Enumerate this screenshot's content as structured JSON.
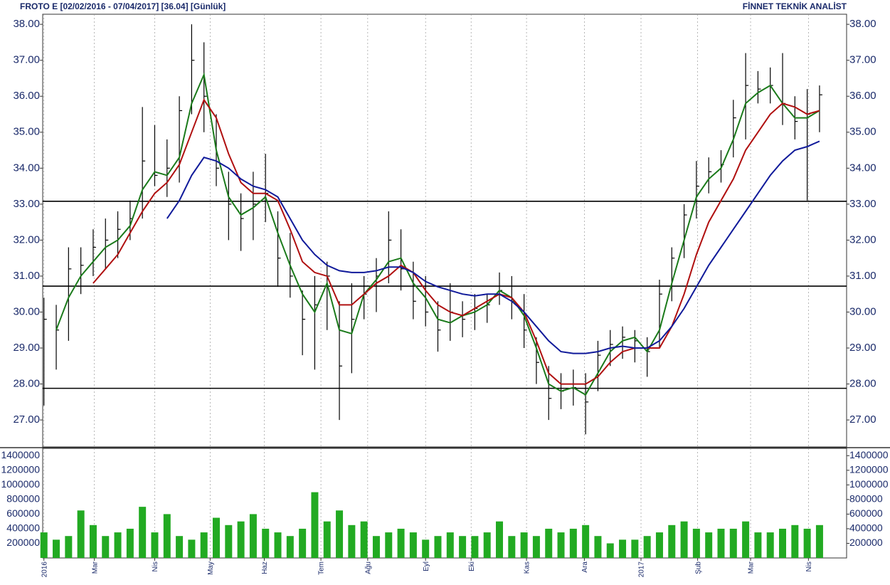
{
  "header": {
    "title": "FROTO E  [02/02/2016 - 07/04/2017]  [36.04]  [Günlük]",
    "brand": "FİNNET TEKNİK ANALİST"
  },
  "chart_data": [
    {
      "type": "ohlc",
      "x": [
        0,
        1,
        2,
        3,
        4,
        5,
        6,
        7,
        8,
        9,
        10,
        11,
        12,
        13,
        14,
        15,
        16,
        17,
        18,
        19,
        20,
        21,
        22,
        23,
        24,
        25,
        26,
        27,
        28,
        29,
        30,
        31,
        32,
        33,
        34,
        35,
        36,
        37,
        38,
        39,
        40,
        41,
        42,
        43,
        44,
        45,
        46,
        47,
        48,
        49,
        50,
        51,
        52,
        53,
        54,
        55,
        56,
        57,
        58,
        59,
        60,
        61,
        62,
        63
      ],
      "high": [
        30.4,
        30.2,
        31.8,
        31.8,
        32.3,
        32.6,
        32.8,
        33.1,
        35.7,
        35.2,
        34.8,
        36.0,
        38.0,
        37.5,
        35.5,
        33.9,
        33.3,
        33.9,
        34.4,
        32.8,
        32.2,
        30.6,
        31.0,
        31.4,
        30.3,
        30.8,
        31.0,
        31.5,
        32.8,
        32.3,
        31.4,
        31.0,
        30.3,
        30.8,
        30.3,
        30.5,
        30.5,
        31.1,
        31.0,
        30.5,
        29.3,
        28.5,
        28.3,
        28.4,
        28.3,
        29.2,
        29.5,
        29.6,
        29.5,
        29.3,
        30.9,
        31.8,
        33.0,
        34.2,
        34.3,
        34.5,
        35.9,
        37.2,
        36.7,
        36.8,
        37.2,
        36.0,
        36.2,
        36.3
      ],
      "low": [
        27.4,
        28.4,
        29.2,
        30.5,
        31.0,
        31.2,
        31.5,
        32.0,
        32.6,
        33.5,
        33.2,
        33.6,
        35.5,
        35.0,
        33.5,
        32.0,
        31.7,
        32.0,
        32.5,
        30.7,
        30.4,
        28.8,
        28.4,
        29.5,
        27.0,
        28.3,
        29.8,
        30.0,
        30.8,
        30.6,
        29.8,
        29.6,
        28.9,
        29.2,
        29.3,
        29.5,
        29.7,
        30.2,
        29.8,
        29.0,
        28.0,
        27.0,
        27.3,
        27.4,
        26.6,
        27.8,
        28.5,
        28.7,
        28.6,
        28.2,
        29.0,
        30.3,
        31.5,
        32.6,
        33.3,
        33.6,
        34.3,
        34.8,
        35.8,
        35.8,
        35.2,
        34.8,
        33.1,
        35.0
      ],
      "close": [
        29.8,
        29.5,
        31.2,
        31.3,
        31.8,
        32.0,
        32.3,
        32.6,
        34.2,
        33.8,
        34.0,
        35.6,
        37.0,
        36.0,
        34.0,
        33.0,
        32.6,
        33.0,
        33.3,
        31.5,
        31.0,
        29.8,
        30.2,
        31.0,
        28.5,
        29.8,
        30.5,
        31.0,
        32.0,
        31.2,
        30.3,
        30.0,
        29.5,
        30.0,
        29.8,
        30.1,
        30.2,
        30.6,
        30.3,
        29.5,
        28.6,
        27.6,
        27.8,
        27.9,
        27.5,
        28.8,
        29.1,
        29.3,
        29.2,
        28.9,
        30.5,
        31.5,
        32.7,
        33.5,
        33.9,
        34.1,
        35.4,
        36.3,
        36.2,
        36.3,
        35.8,
        35.3,
        35.5,
        36.04
      ],
      "bar_color": "#000000",
      "series": [
        {
          "color": "#1a7a1a",
          "values": [
            null,
            29.5,
            30.4,
            31.0,
            31.4,
            31.8,
            32.0,
            32.4,
            33.4,
            33.9,
            33.8,
            34.3,
            35.8,
            36.6,
            34.5,
            33.2,
            32.7,
            32.9,
            33.2,
            32.2,
            31.3,
            30.5,
            30.0,
            30.8,
            29.5,
            29.4,
            30.5,
            30.9,
            31.4,
            31.5,
            30.8,
            30.4,
            29.8,
            29.7,
            29.9,
            30.0,
            30.2,
            30.6,
            30.4,
            29.9,
            29.0,
            28.0,
            27.8,
            27.9,
            27.7,
            28.3,
            28.9,
            29.2,
            29.3,
            28.9,
            29.5,
            30.8,
            32.0,
            33.2,
            33.7,
            34.0,
            34.8,
            35.8,
            36.1,
            36.3,
            35.8,
            35.4,
            35.4,
            35.6
          ]
        },
        {
          "color": "#b01010",
          "values": [
            null,
            null,
            null,
            null,
            30.8,
            31.2,
            31.6,
            32.2,
            32.8,
            33.3,
            33.6,
            34.1,
            35.0,
            35.9,
            35.4,
            34.4,
            33.6,
            33.3,
            33.3,
            33.1,
            32.3,
            31.4,
            31.1,
            31.0,
            30.2,
            30.2,
            30.5,
            30.8,
            31.0,
            31.3,
            31.1,
            30.6,
            30.2,
            30.0,
            29.9,
            30.1,
            30.3,
            30.5,
            30.4,
            30.0,
            29.2,
            28.3,
            28.0,
            28.0,
            28.0,
            28.2,
            28.6,
            28.9,
            29.0,
            29.0,
            29.0,
            29.6,
            30.5,
            31.6,
            32.5,
            33.1,
            33.7,
            34.5,
            35.0,
            35.5,
            35.8,
            35.7,
            35.5,
            35.6
          ]
        },
        {
          "color": "#101a9a",
          "values": [
            null,
            null,
            null,
            null,
            null,
            null,
            null,
            null,
            null,
            null,
            32.6,
            33.1,
            33.8,
            34.3,
            34.2,
            34.0,
            33.7,
            33.5,
            33.4,
            33.2,
            32.6,
            32.0,
            31.6,
            31.3,
            31.15,
            31.1,
            31.1,
            31.15,
            31.25,
            31.25,
            31.1,
            30.85,
            30.7,
            30.6,
            30.5,
            30.45,
            30.5,
            30.5,
            30.3,
            30.0,
            29.6,
            29.2,
            28.9,
            28.85,
            28.85,
            28.9,
            29.0,
            29.05,
            29.0,
            29.0,
            29.2,
            29.6,
            30.1,
            30.7,
            31.3,
            31.8,
            32.3,
            32.8,
            33.3,
            33.8,
            34.2,
            34.5,
            34.6,
            34.75
          ]
        }
      ],
      "hlines": [
        33.08,
        30.72,
        27.88
      ],
      "xlim": [
        -0.1,
        65.2
      ],
      "ylim": [
        26.25,
        38.28
      ],
      "yticks": [
        {
          "value": 27,
          "label": "27.00"
        },
        {
          "value": 28,
          "label": "28.00"
        },
        {
          "value": 29,
          "label": "29.00"
        },
        {
          "value": 30,
          "label": "30.00"
        },
        {
          "value": 31,
          "label": "31.00"
        },
        {
          "value": 32,
          "label": "32.00"
        },
        {
          "value": 33,
          "label": "33.00"
        },
        {
          "value": 34,
          "label": "34.00"
        },
        {
          "value": 35,
          "label": "35.00"
        },
        {
          "value": 36,
          "label": "36.00"
        },
        {
          "value": 37,
          "label": "37.00"
        },
        {
          "value": 38,
          "label": "38.00"
        }
      ]
    },
    {
      "type": "bar",
      "color": "#22aa22",
      "values": [
        350000,
        250000,
        300000,
        650000,
        450000,
        300000,
        350000,
        400000,
        700000,
        350000,
        600000,
        300000,
        250000,
        350000,
        550000,
        450000,
        500000,
        600000,
        400000,
        350000,
        300000,
        400000,
        900000,
        500000,
        650000,
        450000,
        500000,
        300000,
        350000,
        400000,
        350000,
        250000,
        300000,
        350000,
        300000,
        300000,
        350000,
        500000,
        300000,
        350000,
        300000,
        400000,
        350000,
        400000,
        450000,
        300000,
        200000,
        250000,
        250000,
        300000,
        350000,
        450000,
        500000,
        400000,
        350000,
        400000,
        400000,
        500000,
        350000,
        350000,
        400000,
        450000,
        400000,
        450000
      ],
      "ylim": [
        0,
        1500000
      ],
      "yticks": [
        200000,
        400000,
        600000,
        800000,
        1000000,
        1200000,
        1400000
      ],
      "xticks": [
        {
          "value": 0,
          "label": "2016"
        },
        {
          "value": 4.1,
          "label": "Mar"
        },
        {
          "value": 9.0,
          "label": "Nis"
        },
        {
          "value": 13.5,
          "label": "May"
        },
        {
          "value": 17.9,
          "label": "Haz"
        },
        {
          "value": 22.5,
          "label": "Tem"
        },
        {
          "value": 26.3,
          "label": "Ağu"
        },
        {
          "value": 31.0,
          "label": "Eyl"
        },
        {
          "value": 34.7,
          "label": "Eki"
        },
        {
          "value": 39.2,
          "label": "Kas"
        },
        {
          "value": 43.9,
          "label": "Ara"
        },
        {
          "value": 48.5,
          "label": "2017"
        },
        {
          "value": 53.1,
          "label": "Şub"
        },
        {
          "value": 57.4,
          "label": "Mar"
        },
        {
          "value": 62.1,
          "label": "Nis"
        }
      ]
    }
  ]
}
